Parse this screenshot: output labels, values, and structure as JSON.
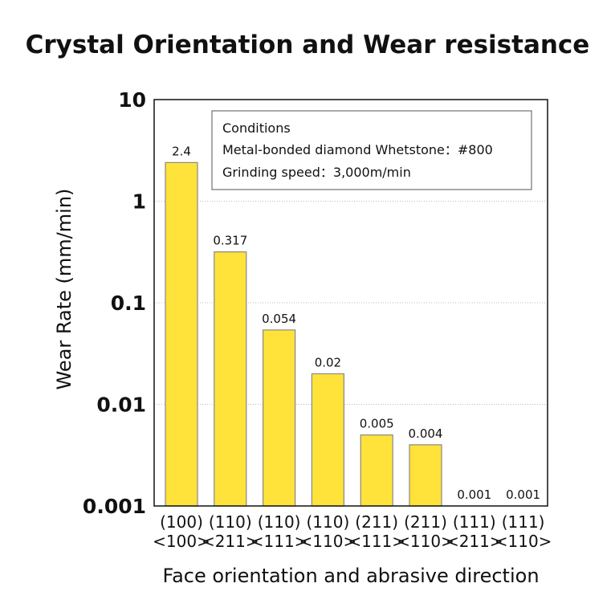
{
  "chart_data": {
    "type": "bar",
    "title": "Crystal Orientation and Wear resistance",
    "xlabel": "Face orientation and abrasive direction",
    "ylabel": "Wear Rate (mm/min)",
    "yscale": "log",
    "ylim": [
      0.001,
      10
    ],
    "yticks": [
      "10",
      "1",
      "0.1",
      "0.01",
      "0.001"
    ],
    "grid": "horizontal dotted",
    "categories": [
      [
        "(100)",
        "<100>"
      ],
      [
        "(110)",
        "<211>"
      ],
      [
        "(110)",
        "<111>"
      ],
      [
        "(110)",
        "<110>"
      ],
      [
        "(211)",
        "<111>"
      ],
      [
        "(211)",
        "<110>"
      ],
      [
        "(111)",
        "<211>"
      ],
      [
        "(111)",
        "<110>"
      ]
    ],
    "values": [
      2.4,
      0.317,
      0.054,
      0.02,
      0.005,
      0.004,
      0.001,
      0.001
    ],
    "data_labels": [
      "2.4",
      "0.317",
      "0.054",
      "0.02",
      "0.005",
      "0.004",
      "0.001",
      "0.001"
    ],
    "bar_color": "#FFE23A",
    "bar_edge_color": "#888888",
    "annotation": {
      "title": "Conditions",
      "lines": [
        "Metal-bonded diamond Whetstone：#800",
        "Grinding speed：3,000m/min"
      ]
    }
  }
}
